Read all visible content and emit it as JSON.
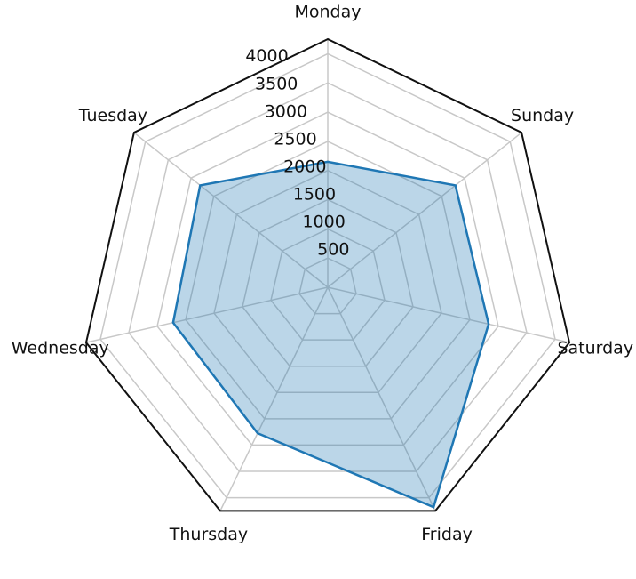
{
  "chart_data": {
    "type": "radar",
    "categories": [
      "Monday",
      "Tuesday",
      "Wednesday",
      "Thursday",
      "Friday",
      "Saturday",
      "Sunday"
    ],
    "series": [
      {
        "color": "#1f77b4",
        "values": [
          2150,
          2800,
          2720,
          2775,
          4180,
          2830,
          2800
        ]
      }
    ],
    "ylim": [
      0,
      4250
    ],
    "yticks": [
      500,
      1000,
      1500,
      2000,
      2500,
      3000,
      3500,
      4000
    ],
    "grid": true
  }
}
